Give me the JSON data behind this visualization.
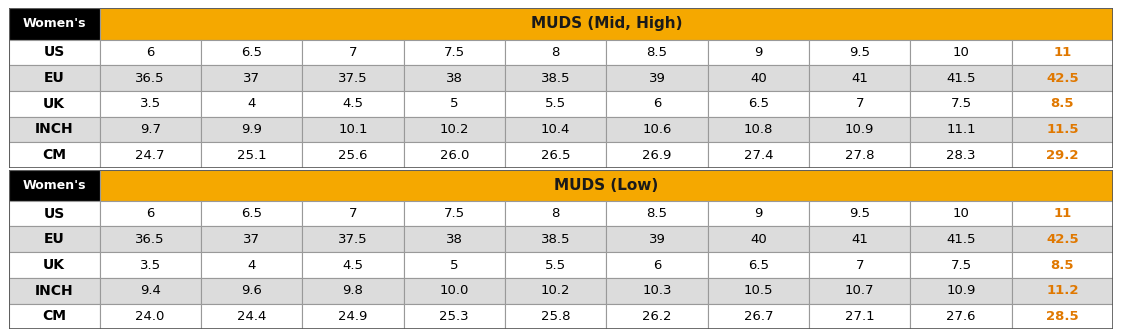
{
  "table1_title": "MUDS (Mid, High)",
  "table2_title": "MUDS (Low)",
  "header_label": "Women's",
  "header_bg": "#F5A800",
  "womens_bg": "#000000",
  "womens_text_color": "#FFFFFF",
  "header_text_color": "#1A1A1A",
  "row_labels": [
    "US",
    "EU",
    "UK",
    "INCH",
    "CM"
  ],
  "table1_data": [
    [
      "6",
      "6.5",
      "7",
      "7.5",
      "8",
      "8.5",
      "9",
      "9.5",
      "10",
      "11"
    ],
    [
      "36.5",
      "37",
      "37.5",
      "38",
      "38.5",
      "39",
      "40",
      "41",
      "41.5",
      "42.5"
    ],
    [
      "3.5",
      "4",
      "4.5",
      "5",
      "5.5",
      "6",
      "6.5",
      "7",
      "7.5",
      "8.5"
    ],
    [
      "9.7",
      "9.9",
      "10.1",
      "10.2",
      "10.4",
      "10.6",
      "10.8",
      "10.9",
      "11.1",
      "11.5"
    ],
    [
      "24.7",
      "25.1",
      "25.6",
      "26.0",
      "26.5",
      "26.9",
      "27.4",
      "27.8",
      "28.3",
      "29.2"
    ]
  ],
  "table2_data": [
    [
      "6",
      "6.5",
      "7",
      "7.5",
      "8",
      "8.5",
      "9",
      "9.5",
      "10",
      "11"
    ],
    [
      "36.5",
      "37",
      "37.5",
      "38",
      "38.5",
      "39",
      "40",
      "41",
      "41.5",
      "42.5"
    ],
    [
      "3.5",
      "4",
      "4.5",
      "5",
      "5.5",
      "6",
      "6.5",
      "7",
      "7.5",
      "8.5"
    ],
    [
      "9.4",
      "9.6",
      "9.8",
      "10.0",
      "10.2",
      "10.3",
      "10.5",
      "10.7",
      "10.9",
      "11.2"
    ],
    [
      "24.0",
      "24.4",
      "24.9",
      "25.3",
      "25.8",
      "26.2",
      "26.7",
      "27.1",
      "27.6",
      "28.5"
    ]
  ],
  "row_bg_even": "#FFFFFF",
  "row_bg_odd": "#DCDCDC",
  "border_color": "#999999",
  "last_col_text_color": "#E07800",
  "data_text_color": "#000000",
  "font_size": 9.5,
  "header_font_size": 11,
  "label_font_size": 10
}
